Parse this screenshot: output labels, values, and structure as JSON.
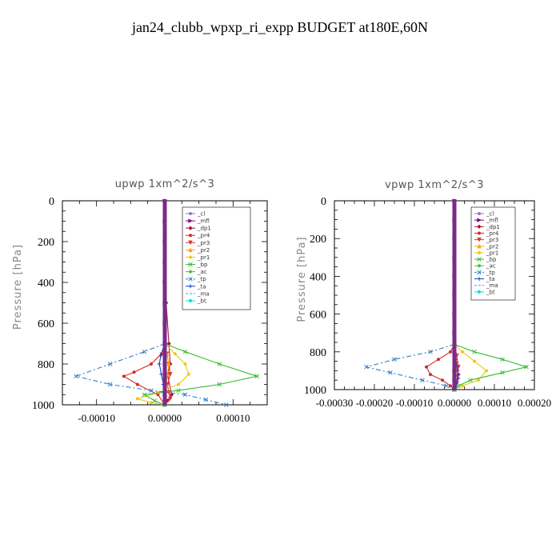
{
  "figure": {
    "title": "jan24_clubb_wpxp_ri_expp  BUDGET at180E,60N"
  },
  "chart_data": [
    {
      "type": "line",
      "title": "upwp   1xm^2/s^3",
      "ylabel": "Pressure  [hPa]",
      "xlabel": "",
      "xlim": [
        -0.00015,
        0.00015
      ],
      "ylim": [
        1000,
        0
      ],
      "yticks": [
        0,
        200,
        400,
        600,
        800,
        1000
      ],
      "ytick_labels": [
        "0",
        "200",
        "400",
        "600",
        "800",
        "1000"
      ],
      "xticks": [
        -0.0001,
        0,
        0.0001
      ],
      "xtick_labels": [
        "-0.00010",
        "0.00000",
        "0.00010"
      ],
      "grid": false,
      "legend": "top-right",
      "series": [
        {
          "name": "_cl",
          "color": "#9370db",
          "marker": "circle",
          "dash": "",
          "x": [
            0,
            0,
            0,
            0,
            0,
            0,
            0,
            0,
            0,
            0,
            0,
            0
          ],
          "y": [
            0,
            100,
            200,
            300,
            400,
            500,
            600,
            700,
            800,
            900,
            950,
            1000
          ]
        },
        {
          "name": "_mfl",
          "color": "#800080",
          "marker": "tri-right",
          "dash": "",
          "x": [
            0,
            0,
            0,
            0,
            0,
            0,
            0,
            0,
            0,
            0,
            0,
            0
          ],
          "y": [
            0,
            100,
            200,
            300,
            400,
            500,
            600,
            700,
            800,
            900,
            950,
            1000
          ]
        },
        {
          "name": "_dp1",
          "color": "#a0143c",
          "marker": "diamond",
          "dash": "",
          "x": [
            0,
            0,
            0,
            0,
            0,
            2e-06,
            6e-06,
            8e-06,
            4e-06,
            1e-05,
            4e-06,
            0
          ],
          "y": [
            0,
            100,
            200,
            300,
            400,
            500,
            700,
            800,
            850,
            950,
            980,
            1000
          ]
        },
        {
          "name": "_pr4",
          "color": "#d22828",
          "marker": "circle",
          "dash": "",
          "x": [
            0,
            -5e-06,
            -2e-05,
            -4.5e-05,
            -6e-05,
            -4e-05,
            -1e-05,
            0
          ],
          "y": [
            700,
            750,
            800,
            840,
            860,
            900,
            950,
            1000
          ]
        },
        {
          "name": "_pr3",
          "color": "#e63232",
          "marker": "tri-down",
          "dash": "",
          "x": [
            0,
            3e-06,
            6e-06,
            8e-06,
            4e-06,
            6e-06,
            8e-06,
            0
          ],
          "y": [
            700,
            750,
            800,
            850,
            900,
            940,
            970,
            1000
          ]
        },
        {
          "name": "_pr2",
          "color": "#ffa500",
          "marker": "tri-up",
          "dash": "",
          "x": [
            0,
            3e-06,
            6e-06,
            4e-06,
            2e-06,
            1e-06,
            0
          ],
          "y": [
            700,
            750,
            800,
            850,
            900,
            950,
            1000
          ]
        },
        {
          "name": "_pr1",
          "color": "#f0c814",
          "marker": "circle",
          "dash": "",
          "x": [
            0,
            1.5e-05,
            3e-05,
            3.5e-05,
            2e-05,
            -1e-05,
            -4e-05,
            -2e-05,
            0
          ],
          "y": [
            700,
            750,
            800,
            850,
            900,
            940,
            970,
            990,
            1000
          ]
        },
        {
          "name": "_bp",
          "color": "#32be32",
          "marker": "x",
          "dash": "",
          "x": [
            0,
            3e-05,
            8e-05,
            0.000135,
            8e-05,
            2e-05,
            -3e-05,
            -1.5e-05,
            0
          ],
          "y": [
            700,
            740,
            800,
            860,
            900,
            930,
            950,
            980,
            1000
          ]
        },
        {
          "name": "_ac",
          "color": "#3cc83c",
          "marker": "circle",
          "dash": "",
          "x": [
            0,
            0,
            0,
            0,
            0
          ],
          "y": [
            700,
            800,
            900,
            950,
            1000
          ]
        },
        {
          "name": "_tp",
          "color": "#2f7fc8",
          "marker": "x",
          "dash": "6,3,2,3",
          "x": [
            0,
            -3e-05,
            -8e-05,
            -0.00013,
            -8e-05,
            -2e-05,
            3e-05,
            6e-05,
            9e-05
          ],
          "y": [
            700,
            740,
            800,
            860,
            900,
            930,
            950,
            975,
            1000
          ]
        },
        {
          "name": "_ta",
          "color": "#1e3cc8",
          "marker": "plus",
          "dash": "",
          "x": [
            0,
            -6e-06,
            -8e-06,
            -5e-06,
            -2e-06,
            0
          ],
          "y": [
            700,
            760,
            800,
            850,
            900,
            1000
          ]
        },
        {
          "name": "_ma",
          "color": "#50a0c8",
          "marker": "",
          "dash": "8,4",
          "x": [
            0,
            0,
            0
          ],
          "y": [
            700,
            900,
            1000
          ]
        },
        {
          "name": "_bt",
          "color": "#00e0e0",
          "marker": "diamond",
          "dash": "",
          "x": [
            0,
            0,
            0
          ],
          "y": [
            700,
            900,
            1000
          ]
        }
      ]
    },
    {
      "type": "line",
      "title": "vpwp   1xm^2/s^3",
      "ylabel": "Pressure  [hPa]",
      "xlabel": "",
      "xlim": [
        -0.0003,
        0.0002
      ],
      "ylim": [
        1000,
        0
      ],
      "yticks": [
        0,
        200,
        400,
        600,
        800,
        1000
      ],
      "ytick_labels": [
        "0",
        "200",
        "400",
        "600",
        "800",
        "1000"
      ],
      "xticks": [
        -0.0003,
        -0.0002,
        -0.0001,
        0,
        0.0001,
        0.0002
      ],
      "xtick_labels": [
        "-0.00030",
        "-0.00020",
        "-0.00010",
        "0.00000",
        "0.00010",
        "0.00020"
      ],
      "grid": false,
      "legend": "top-right",
      "series": [
        {
          "name": "_cl",
          "color": "#9370db",
          "marker": "circle",
          "dash": "",
          "x": [
            0,
            0,
            0,
            0,
            0,
            0,
            0,
            0,
            0,
            0,
            0,
            0
          ],
          "y": [
            0,
            100,
            200,
            300,
            400,
            500,
            600,
            700,
            800,
            900,
            950,
            1000
          ]
        },
        {
          "name": "_mfl",
          "color": "#800080",
          "marker": "tri-right",
          "dash": "",
          "x": [
            0,
            0,
            0,
            0,
            0,
            0,
            0,
            0,
            0,
            0,
            0,
            0
          ],
          "y": [
            0,
            100,
            200,
            300,
            400,
            500,
            600,
            700,
            800,
            900,
            950,
            1000
          ]
        },
        {
          "name": "_dp1",
          "color": "#a0143c",
          "marker": "diamond",
          "dash": "",
          "x": [
            0,
            0,
            0,
            5e-06,
            1e-05,
            6e-06,
            3e-06,
            0
          ],
          "y": [
            0,
            500,
            760,
            850,
            920,
            960,
            985,
            1000
          ]
        },
        {
          "name": "_pr4",
          "color": "#d22828",
          "marker": "circle",
          "dash": "",
          "x": [
            0,
            -1e-05,
            -4e-05,
            -7e-05,
            -6e-05,
            -3e-05,
            -1e-05,
            0
          ],
          "y": [
            760,
            800,
            840,
            880,
            920,
            950,
            980,
            1000
          ]
        },
        {
          "name": "_pr3",
          "color": "#e63232",
          "marker": "tri-down",
          "dash": "",
          "x": [
            0,
            6e-06,
            1e-05,
            8e-06,
            4e-06,
            0
          ],
          "y": [
            760,
            820,
            880,
            930,
            970,
            1000
          ]
        },
        {
          "name": "_pr2",
          "color": "#ffa500",
          "marker": "tri-up",
          "dash": "",
          "x": [
            0,
            3e-06,
            5e-06,
            3e-06,
            0
          ],
          "y": [
            760,
            840,
            900,
            960,
            1000
          ]
        },
        {
          "name": "_pr1",
          "color": "#f0c814",
          "marker": "circle",
          "dash": "",
          "x": [
            0,
            2e-05,
            5e-05,
            8e-05,
            6e-05,
            2e-05,
            0
          ],
          "y": [
            760,
            800,
            850,
            900,
            950,
            980,
            1000
          ]
        },
        {
          "name": "_bp",
          "color": "#32be32",
          "marker": "x",
          "dash": "",
          "x": [
            0,
            5e-05,
            0.00012,
            0.00018,
            0.00012,
            4e-05,
            1e-05,
            0
          ],
          "y": [
            760,
            800,
            840,
            880,
            910,
            950,
            980,
            1000
          ]
        },
        {
          "name": "_ac",
          "color": "#3cc83c",
          "marker": "circle",
          "dash": "",
          "x": [
            0,
            0,
            0,
            0
          ],
          "y": [
            760,
            900,
            960,
            1000
          ]
        },
        {
          "name": "_tp",
          "color": "#2f7fc8",
          "marker": "x",
          "dash": "6,3,2,3",
          "x": [
            0,
            -6e-05,
            -0.00015,
            -0.00022,
            -0.00016,
            -8e-05,
            -2e-05,
            0
          ],
          "y": [
            760,
            800,
            840,
            880,
            910,
            950,
            980,
            1000
          ]
        },
        {
          "name": "_ta",
          "color": "#1e3cc8",
          "marker": "plus",
          "dash": "",
          "x": [
            0,
            3e-06,
            8e-06,
            1e-05,
            5e-06,
            0
          ],
          "y": [
            760,
            840,
            900,
            940,
            970,
            1000
          ]
        },
        {
          "name": "_ma",
          "color": "#50a0c8",
          "marker": "",
          "dash": "8,4",
          "x": [
            0,
            0,
            0
          ],
          "y": [
            760,
            900,
            1000
          ]
        },
        {
          "name": "_bt",
          "color": "#00e0e0",
          "marker": "diamond",
          "dash": "",
          "x": [
            0,
            0,
            0
          ],
          "y": [
            760,
            900,
            1000
          ]
        }
      ]
    }
  ]
}
